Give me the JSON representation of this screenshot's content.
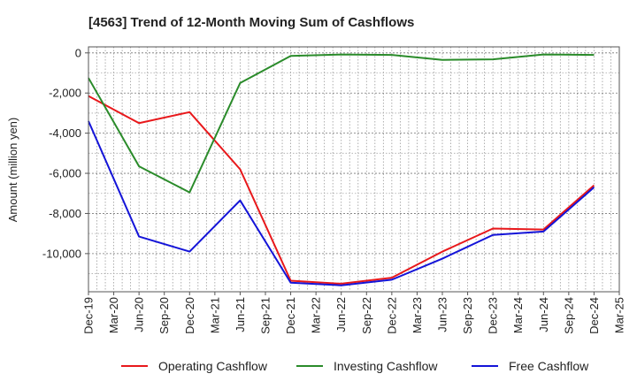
{
  "chart_data": {
    "type": "line",
    "title": "[4563]  Trend of 12-Month Moving Sum of Cashflows",
    "xlabel": "",
    "ylabel": "Amount (million yen)",
    "ylim": [
      -11900,
      300
    ],
    "yticks": [
      0,
      -2000,
      -4000,
      -6000,
      -8000,
      -10000
    ],
    "ytick_labels": [
      "0",
      "-2,000",
      "-4,000",
      "-6,000",
      "-8,000",
      "-10,000"
    ],
    "categories": [
      "Dec-19",
      "Mar-20",
      "Jun-20",
      "Sep-20",
      "Dec-20",
      "Mar-21",
      "Jun-21",
      "Sep-21",
      "Dec-21",
      "Mar-22",
      "Jun-22",
      "Sep-22",
      "Dec-22",
      "Mar-23",
      "Jun-23",
      "Sep-23",
      "Dec-23",
      "Mar-24",
      "Jun-24",
      "Sep-24",
      "Dec-24",
      "Mar-25"
    ],
    "grid": true,
    "legend_position": "bottom",
    "series": [
      {
        "name": "Operating Cashflow",
        "color": "#e8181b",
        "points": [
          [
            "Dec-19",
            -2150
          ],
          [
            "Jun-20",
            -3500
          ],
          [
            "Dec-20",
            -2950
          ],
          [
            "Jun-21",
            -5800
          ],
          [
            "Dec-21",
            -11350
          ],
          [
            "Jun-22",
            -11500
          ],
          [
            "Dec-22",
            -11200
          ],
          [
            "Jun-23",
            -9900
          ],
          [
            "Dec-23",
            -8750
          ],
          [
            "Jun-24",
            -8800
          ],
          [
            "Dec-24",
            -6600
          ]
        ]
      },
      {
        "name": "Investing Cashflow",
        "color": "#2a8b2a",
        "points": [
          [
            "Dec-19",
            -1250
          ],
          [
            "Jun-20",
            -5650
          ],
          [
            "Dec-20",
            -6950
          ],
          [
            "Jun-21",
            -1500
          ],
          [
            "Dec-21",
            -150
          ],
          [
            "Jun-22",
            -80
          ],
          [
            "Dec-22",
            -100
          ],
          [
            "Jun-23",
            -350
          ],
          [
            "Dec-23",
            -320
          ],
          [
            "Jun-24",
            -80
          ],
          [
            "Dec-24",
            -100
          ]
        ]
      },
      {
        "name": "Free Cashflow",
        "color": "#1414d8",
        "points": [
          [
            "Dec-19",
            -3400
          ],
          [
            "Jun-20",
            -9150
          ],
          [
            "Dec-20",
            -9900
          ],
          [
            "Jun-21",
            -7350
          ],
          [
            "Dec-21",
            -11450
          ],
          [
            "Jun-22",
            -11580
          ],
          [
            "Dec-22",
            -11300
          ],
          [
            "Jun-23",
            -10250
          ],
          [
            "Dec-23",
            -9070
          ],
          [
            "Jun-24",
            -8900
          ],
          [
            "Dec-24",
            -6700
          ]
        ]
      }
    ]
  }
}
